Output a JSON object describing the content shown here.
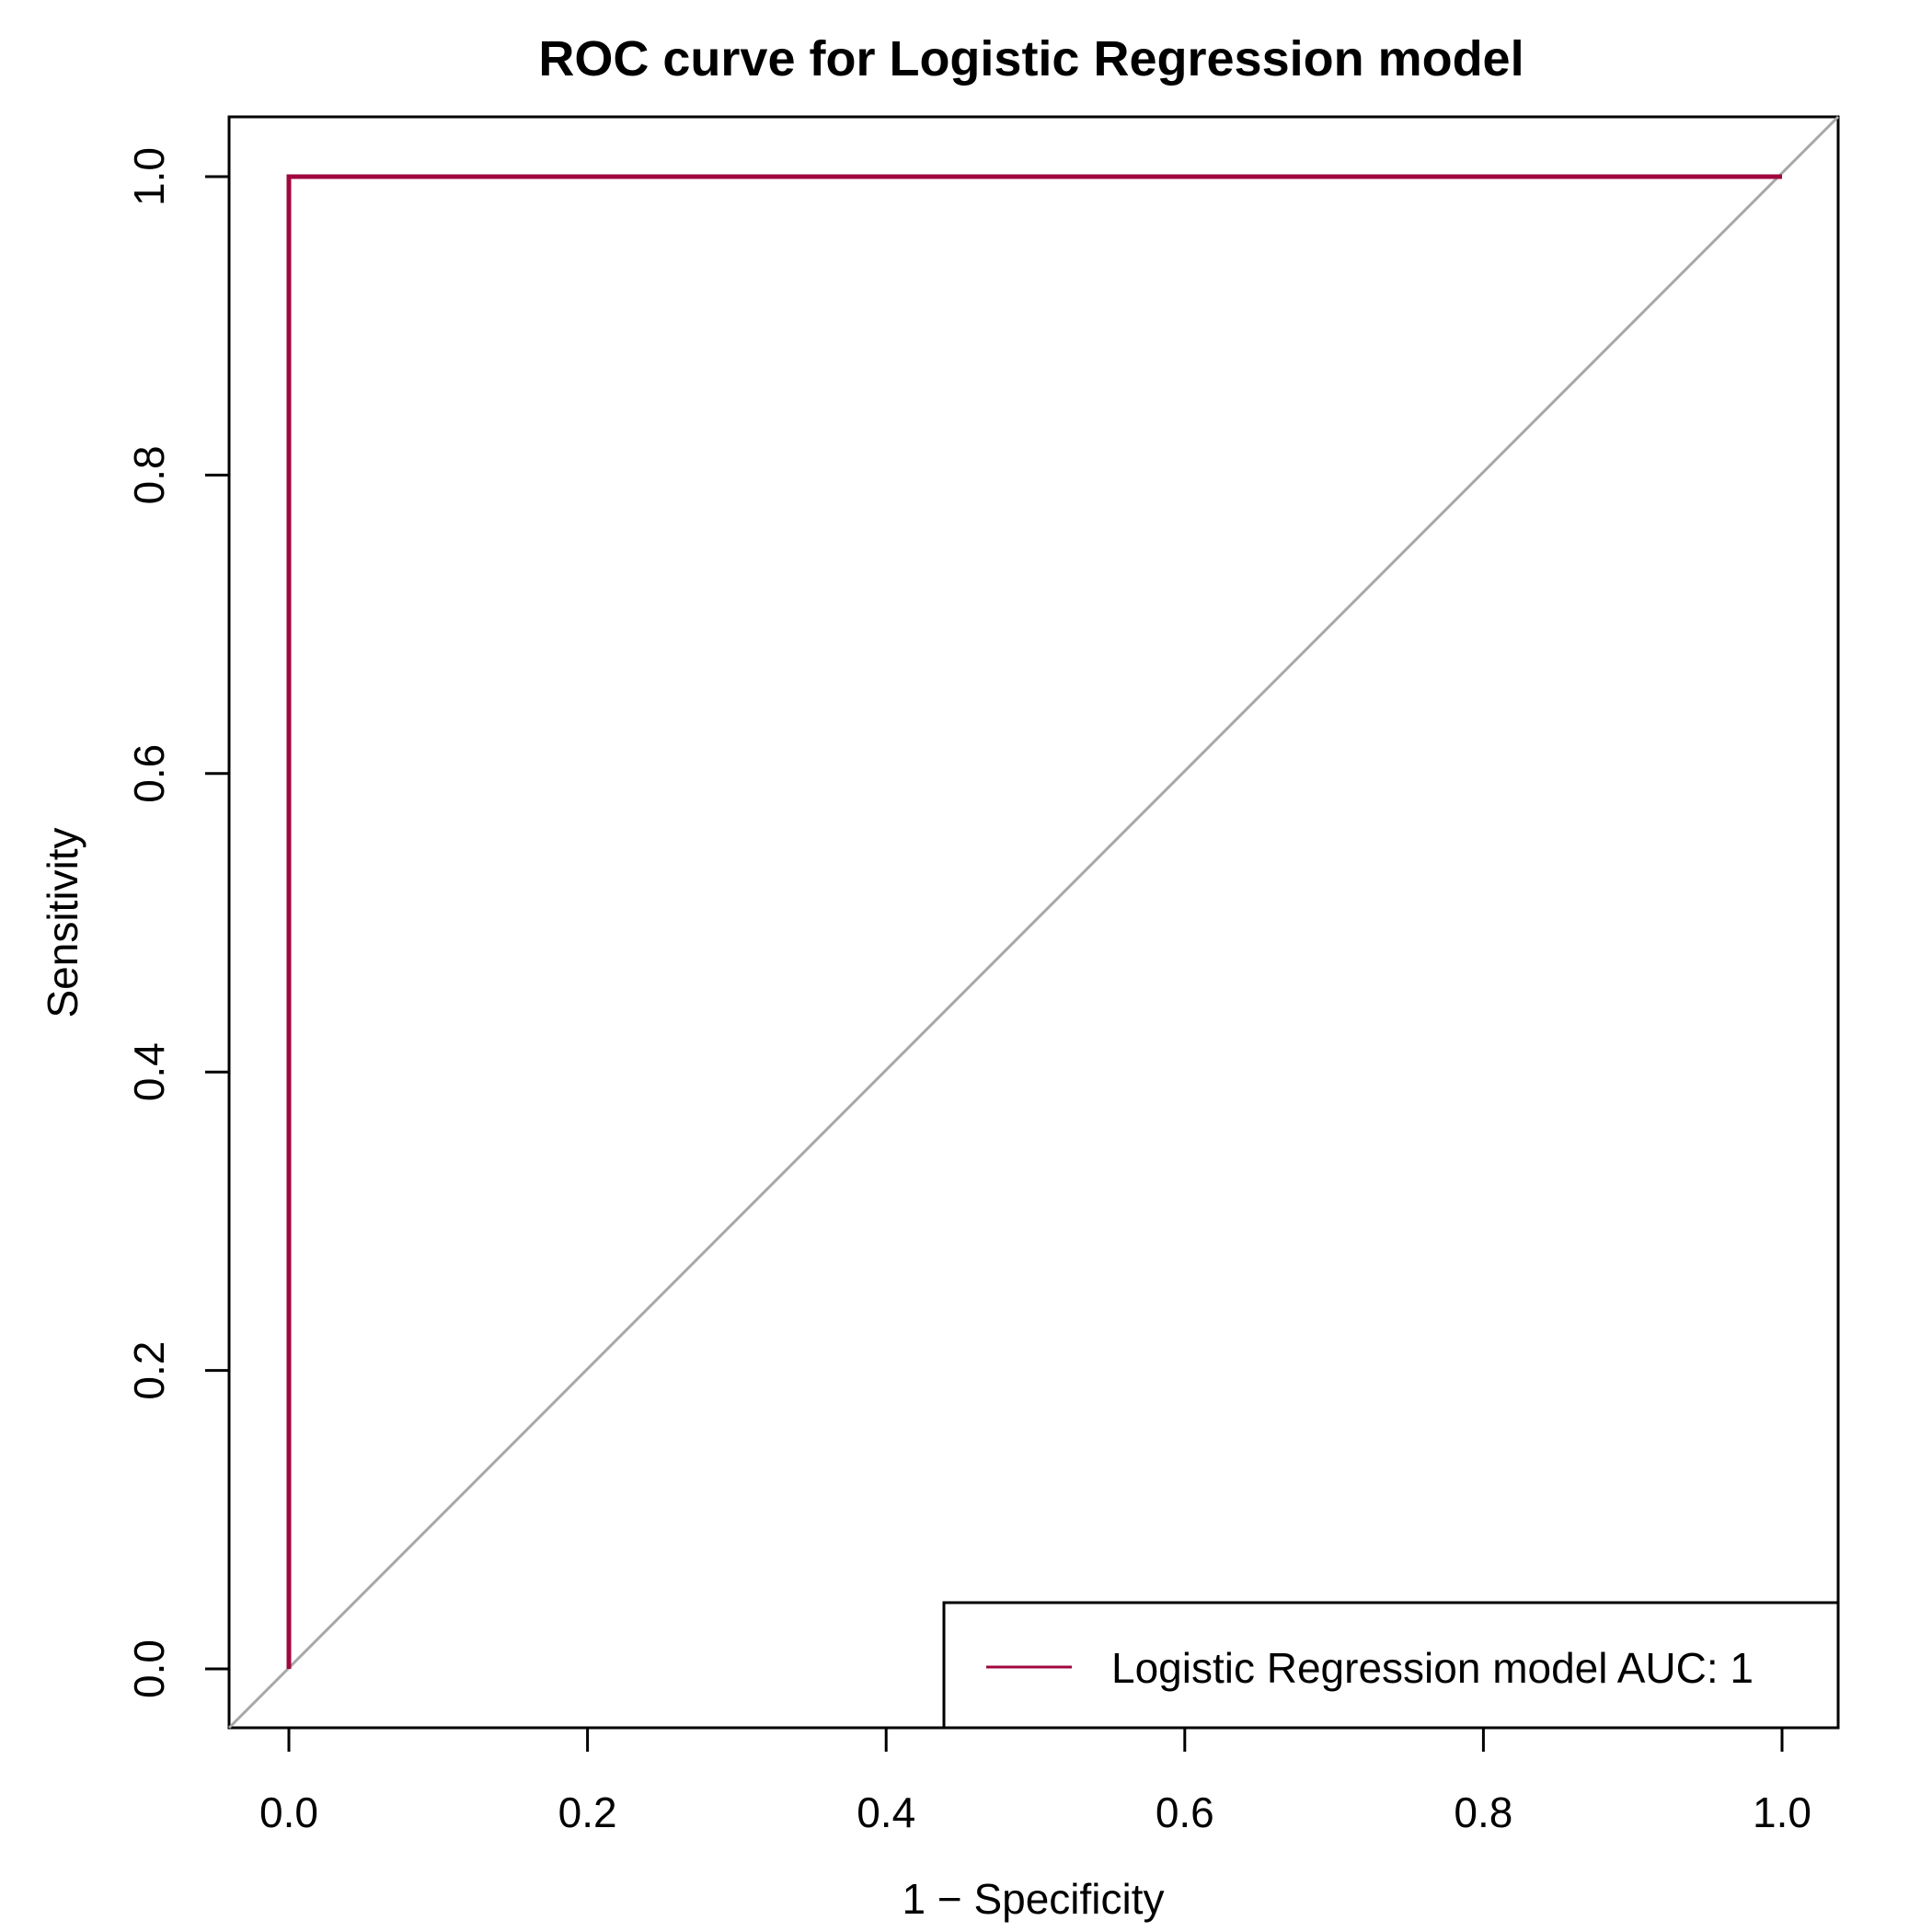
{
  "chart_data": {
    "type": "line",
    "title": "ROC curve for Logistic Regression model",
    "xlabel": "1 − Specificity",
    "ylabel": "Sensitivity",
    "xlim": [
      0,
      1
    ],
    "ylim": [
      0,
      1
    ],
    "x_ticks": [
      "0.0",
      "0.2",
      "0.4",
      "0.6",
      "0.8",
      "1.0"
    ],
    "y_ticks": [
      "0.0",
      "0.2",
      "0.4",
      "0.6",
      "0.8",
      "1.0"
    ],
    "grid": false,
    "legend_position": "bottom-right",
    "series": [
      {
        "name": "Logistic Regression model AUC: 1",
        "color": "#a0073f",
        "x": [
          0,
          0,
          1
        ],
        "y": [
          0,
          1,
          1
        ]
      }
    ],
    "reference_line": {
      "x": [
        0,
        1
      ],
      "y": [
        0,
        1
      ],
      "color": "#a8a8a8"
    }
  }
}
